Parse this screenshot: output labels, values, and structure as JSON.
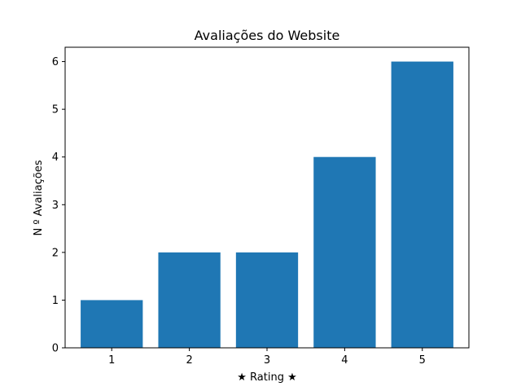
{
  "chart_data": {
    "type": "bar",
    "title": "Avaliações do Website",
    "xlabel": "★ Rating ★",
    "ylabel": "N º Avaliações",
    "categories": [
      "1",
      "2",
      "3",
      "4",
      "5"
    ],
    "values": [
      1,
      2,
      2,
      4,
      6
    ],
    "yticks": [
      "0",
      "1",
      "2",
      "3",
      "4",
      "5",
      "6"
    ],
    "ylim": [
      0,
      6.3
    ],
    "grid": false,
    "bar_color": "#1f77b4"
  }
}
